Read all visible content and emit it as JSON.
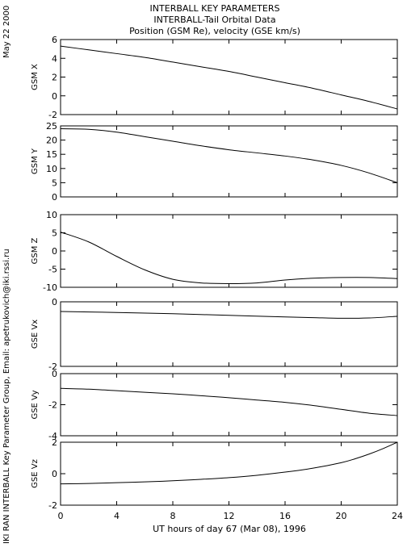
{
  "header": {
    "date": "May 22 2000",
    "title_lines": [
      "INTERBALL KEY PARAMETERS",
      "INTERBALL-Tail Orbital Data",
      "Position (GSM Re), velocity (GSE km/s)"
    ],
    "credit": "IKI RAN INTERBALL Key Parameter Group, Email: apetrukovich@iki.rssi.ru"
  },
  "chart_data": {
    "type": "line",
    "xlabel": "UT hours of day  67 (Mar 08), 1996",
    "xlim": [
      0,
      24
    ],
    "xticks": [
      0,
      4,
      8,
      12,
      16,
      20,
      24
    ],
    "line_color": "#000000",
    "grid": false,
    "panels": [
      {
        "ylabel": "GSM X",
        "ylim": [
          -2,
          6
        ],
        "yticks": [
          -2,
          0,
          2,
          4,
          6
        ],
        "x": [
          0,
          2,
          4,
          6,
          8,
          10,
          12,
          14,
          16,
          18,
          20,
          22,
          24
        ],
        "y": [
          5.3,
          4.9,
          4.5,
          4.1,
          3.6,
          3.1,
          2.6,
          2.0,
          1.4,
          0.8,
          0.1,
          -0.6,
          -1.4
        ]
      },
      {
        "ylabel": "GSM Y",
        "ylim": [
          0,
          25
        ],
        "yticks": [
          0,
          5,
          10,
          15,
          20,
          25
        ],
        "x": [
          0,
          2,
          4,
          6,
          8,
          10,
          12,
          14,
          16,
          18,
          20,
          22,
          24
        ],
        "y": [
          24,
          23.8,
          22.8,
          21.2,
          19.6,
          18.0,
          16.6,
          15.5,
          14.4,
          13.0,
          11.1,
          8.4,
          5.0
        ]
      },
      {
        "ylabel": "GSM Z",
        "ylim": [
          -10,
          10
        ],
        "yticks": [
          -10,
          -5,
          0,
          5,
          10
        ],
        "x": [
          0,
          2,
          4,
          6,
          8,
          10,
          12,
          14,
          16,
          18,
          20,
          22,
          24
        ],
        "y": [
          5.2,
          2.5,
          -1.5,
          -5.2,
          -7.8,
          -8.8,
          -9.0,
          -8.8,
          -8.0,
          -7.5,
          -7.3,
          -7.3,
          -7.6
        ]
      },
      {
        "ylabel": "GSE Vx",
        "ylim": [
          -2,
          0
        ],
        "yticks": [
          -2,
          0
        ],
        "x": [
          0,
          4,
          8,
          12,
          16,
          18,
          20,
          22,
          24
        ],
        "y": [
          -0.3,
          -0.33,
          -0.37,
          -0.42,
          -0.47,
          -0.49,
          -0.51,
          -0.5,
          -0.45
        ]
      },
      {
        "ylabel": "GSE Vy",
        "ylim": [
          -4,
          0
        ],
        "yticks": [
          -4,
          -2,
          0
        ],
        "x": [
          0,
          2,
          4,
          6,
          8,
          10,
          12,
          14,
          16,
          18,
          20,
          22,
          24
        ],
        "y": [
          -0.95,
          -1.0,
          -1.1,
          -1.2,
          -1.3,
          -1.42,
          -1.55,
          -1.7,
          -1.85,
          -2.05,
          -2.3,
          -2.55,
          -2.7
        ]
      },
      {
        "ylabel": "GSE Vz",
        "ylim": [
          -2,
          2
        ],
        "yticks": [
          -2,
          0,
          2
        ],
        "x": [
          0,
          2,
          4,
          6,
          8,
          10,
          12,
          14,
          16,
          18,
          20,
          21,
          22,
          23,
          24
        ],
        "y": [
          -0.65,
          -0.62,
          -0.57,
          -0.52,
          -0.45,
          -0.36,
          -0.25,
          -0.1,
          0.1,
          0.35,
          0.7,
          0.95,
          1.25,
          1.6,
          2.0
        ]
      }
    ]
  }
}
